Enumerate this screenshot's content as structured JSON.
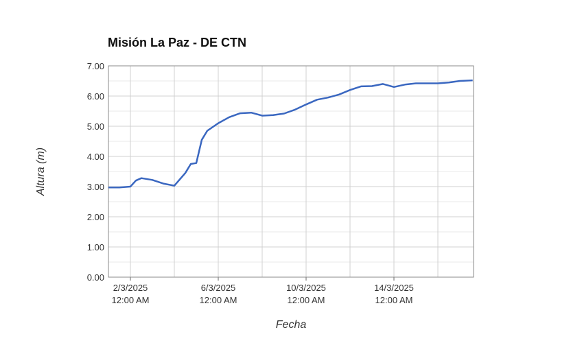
{
  "chart_data": {
    "type": "line",
    "title": "Misión La Paz - DE CTN",
    "xlabel": "Fecha",
    "ylabel": "Altura (m)",
    "x": [
      "2025-03-01T00:00",
      "2025-03-01T12:00",
      "2025-03-02T00:00",
      "2025-03-02T06:00",
      "2025-03-02T12:00",
      "2025-03-03T00:00",
      "2025-03-03T12:00",
      "2025-03-04T00:00",
      "2025-03-04T12:00",
      "2025-03-04T18:00",
      "2025-03-05T00:00",
      "2025-03-05T06:00",
      "2025-03-05T12:00",
      "2025-03-06T00:00",
      "2025-03-06T12:00",
      "2025-03-07T00:00",
      "2025-03-07T12:00",
      "2025-03-08T00:00",
      "2025-03-08T12:00",
      "2025-03-09T00:00",
      "2025-03-09T12:00",
      "2025-03-10T00:00",
      "2025-03-10T12:00",
      "2025-03-11T00:00",
      "2025-03-11T12:00",
      "2025-03-12T00:00",
      "2025-03-12T12:00",
      "2025-03-13T00:00",
      "2025-03-13T12:00",
      "2025-03-14T00:00",
      "2025-03-14T12:00",
      "2025-03-15T00:00",
      "2025-03-15T12:00",
      "2025-03-16T00:00",
      "2025-03-16T12:00",
      "2025-03-17T00:00",
      "2025-03-17T14:00"
    ],
    "series": [
      {
        "name": "Altura",
        "color": "#3a67c0",
        "values": [
          2.97,
          2.97,
          3.0,
          3.2,
          3.28,
          3.22,
          3.1,
          3.03,
          3.45,
          3.75,
          3.78,
          4.55,
          4.85,
          5.1,
          5.3,
          5.43,
          5.45,
          5.35,
          5.37,
          5.42,
          5.55,
          5.72,
          5.88,
          5.95,
          6.05,
          6.2,
          6.32,
          6.33,
          6.4,
          6.3,
          6.38,
          6.42,
          6.42,
          6.42,
          6.45,
          6.5,
          6.52
        ]
      }
    ],
    "xlim": [
      "2025-03-01T00:00",
      "2025-03-17T15:00"
    ],
    "xticks": [
      {
        "value": "2025-03-02T00:00",
        "label": "2/3/2025 12:00 AM"
      },
      {
        "value": "2025-03-06T00:00",
        "label": "6/3/2025 12:00 AM"
      },
      {
        "value": "2025-03-10T00:00",
        "label": "10/3/2025 12:00 AM"
      },
      {
        "value": "2025-03-14T00:00",
        "label": "14/3/2025 12:00 AM"
      }
    ],
    "xgrid": [
      "2025-03-02T00:00",
      "2025-03-04T00:00",
      "2025-03-06T00:00",
      "2025-03-08T00:00",
      "2025-03-10T00:00",
      "2025-03-12T00:00",
      "2025-03-14T00:00",
      "2025-03-16T00:00"
    ],
    "ylim": [
      0,
      7
    ],
    "yticks": [
      {
        "value": 0,
        "label": "0.00"
      },
      {
        "value": 1,
        "label": "1.00"
      },
      {
        "value": 2,
        "label": "2.00"
      },
      {
        "value": 3,
        "label": "3.00"
      },
      {
        "value": 4,
        "label": "4.00"
      },
      {
        "value": 5,
        "label": "5.00"
      },
      {
        "value": 6,
        "label": "6.00"
      },
      {
        "value": 7,
        "label": "7.00"
      }
    ],
    "grid": true
  }
}
